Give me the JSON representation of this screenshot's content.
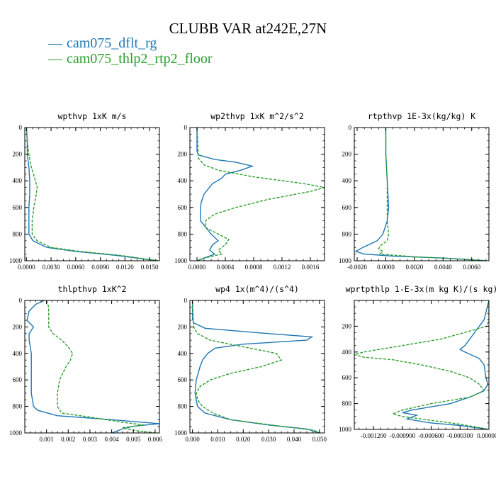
{
  "title": "CLUBB VAR at242E,27N",
  "legend": [
    {
      "label": "cam075_dflt_rg",
      "color": "#1f77b4"
    },
    {
      "label": "cam075_thlp2_rtp2_floor",
      "color": "#2ca02c"
    }
  ],
  "chart_data": [
    {
      "type": "line",
      "title": "wpthvp   1xK m/s",
      "xlim": [
        -0.0002,
        0.0162
      ],
      "ylim": [
        1000,
        0
      ],
      "xticks": [
        0.0,
        0.003,
        0.006,
        0.009,
        0.012,
        0.015
      ],
      "xtick_labels": [
        "0.0000",
        "0.0030",
        "0.0060",
        "0.0090",
        "0.0120",
        "0.0150"
      ],
      "yticks": [
        0,
        200,
        400,
        600,
        800,
        1000
      ],
      "ytick_labels": [
        "0",
        "200",
        "400",
        "600",
        "800",
        "1000"
      ],
      "series": [
        {
          "y": [
            0,
            100,
            200,
            300,
            400,
            500,
            600,
            700,
            800,
            850,
            900,
            930,
            960,
            1000
          ],
          "x": [
            0.0,
            0.0001,
            0.0001,
            0.0003,
            0.0004,
            0.0004,
            0.0003,
            0.0003,
            0.0003,
            0.0008,
            0.0025,
            0.006,
            0.011,
            0.016
          ]
        },
        {
          "y": [
            0,
            100,
            200,
            300,
            400,
            450,
            500,
            600,
            700,
            800,
            850,
            900,
            930,
            960,
            1000
          ],
          "x": [
            0.0,
            0.0001,
            0.0003,
            0.0006,
            0.0011,
            0.0013,
            0.0012,
            0.0009,
            0.0007,
            0.0007,
            0.0013,
            0.003,
            0.0065,
            0.0115,
            0.016
          ]
        }
      ]
    },
    {
      "type": "line",
      "title": "wp2thvp   1xK m^2/s^2",
      "xlim": [
        -0.0001,
        0.0018
      ],
      "ylim": [
        1000,
        0
      ],
      "xticks": [
        0.0,
        0.0004,
        0.0008,
        0.0012,
        0.0016
      ],
      "xtick_labels": [
        "0.0000",
        "0.0004",
        "0.0008",
        "0.0012",
        "0.0016"
      ],
      "yticks": [
        0,
        200,
        400,
        600,
        800,
        1000
      ],
      "ytick_labels": [
        "0",
        "200",
        "400",
        "600",
        "800",
        "1000"
      ],
      "series": [
        {
          "y": [
            0,
            180,
            205,
            240,
            260,
            290,
            320,
            350,
            380,
            420,
            500,
            560,
            600,
            700,
            800,
            850,
            880,
            920,
            950,
            980,
            1000
          ],
          "x": [
            0.0,
            0.0,
            2e-05,
            0.00025,
            0.00055,
            0.00078,
            0.00062,
            0.0004,
            0.00035,
            0.00022,
            0.0001,
            6e-05,
            5e-05,
            5e-05,
            0.0002,
            0.0003,
            0.00022,
            0.00018,
            0.00025,
            0.0001,
            0.0
          ]
        },
        {
          "y": [
            0,
            230,
            280,
            320,
            370,
            420,
            450,
            480,
            540,
            600,
            650,
            700,
            750,
            800,
            840,
            880,
            920,
            950,
            980,
            1000
          ],
          "x": [
            0.0,
            2e-05,
            0.0001,
            0.0003,
            0.0008,
            0.0015,
            0.0018,
            0.0016,
            0.001,
            0.00055,
            0.00025,
            0.00012,
            0.00012,
            0.0003,
            0.00045,
            0.0004,
            0.0003,
            0.00035,
            0.0001,
            0.0
          ]
        }
      ]
    },
    {
      "type": "line",
      "title": "rtpthvp   1E-3x(kg/kg) K",
      "xlim": [
        -0.0022,
        0.0072
      ],
      "ylim": [
        1000,
        0
      ],
      "xticks": [
        -0.002,
        0.0,
        0.002,
        0.004,
        0.006
      ],
      "xtick_labels": [
        "-0.0020",
        "0.0000",
        "0.0020",
        "0.0040",
        "0.0060"
      ],
      "yticks": [
        0,
        200,
        400,
        600,
        800,
        1000
      ],
      "ytick_labels": [
        "0",
        "200",
        "400",
        "600",
        "800",
        "1000"
      ],
      "series": [
        {
          "y": [
            0,
            200,
            400,
            600,
            700,
            800,
            850,
            900,
            930,
            950,
            965,
            980,
            1000
          ],
          "x": [
            0.0,
            0.0,
            0.0001,
            0.0002,
            0.0001,
            -0.0002,
            -0.0006,
            -0.0016,
            -0.0021,
            -0.0015,
            0.0005,
            0.004,
            0.007
          ]
        },
        {
          "y": [
            0,
            200,
            400,
            600,
            700,
            800,
            850,
            880,
            910,
            930,
            950,
            970,
            985,
            1000
          ],
          "x": [
            0.0,
            0.0,
            0.0001,
            0.0001,
            0.0001,
            0.0002,
            0.0001,
            -0.0003,
            -0.0005,
            -0.0002,
            -0.0004,
            0.002,
            0.005,
            0.007
          ]
        }
      ]
    },
    {
      "type": "line",
      "title": "thlpthvp   1xK^2",
      "xlim": [
        0.0,
        0.0062
      ],
      "ylim": [
        1000,
        0
      ],
      "xticks": [
        0.001,
        0.002,
        0.003,
        0.004,
        0.005,
        0.006
      ],
      "xtick_labels": [
        "0.001",
        "0.002",
        "0.003",
        "0.004",
        "0.005",
        "0.006"
      ],
      "yticks": [
        0,
        200,
        400,
        600,
        800,
        1000
      ],
      "ytick_labels": [
        "0",
        "200",
        "400",
        "600",
        "800",
        "1000"
      ],
      "series": [
        {
          "y": [
            0,
            30,
            80,
            150,
            200,
            250,
            300,
            400,
            500,
            600,
            700,
            800,
            830,
            870,
            900,
            930,
            950,
            970,
            1000
          ],
          "x": [
            0.0009,
            0.0005,
            0.0002,
            0.0001,
            0.0004,
            0.0002,
            0.0002,
            0.0003,
            0.0003,
            0.0003,
            0.0003,
            0.0004,
            0.0006,
            0.0015,
            0.004,
            0.0062,
            0.005,
            0.0045,
            0.004
          ]
        },
        {
          "y": [
            0,
            50,
            100,
            200,
            250,
            300,
            350,
            400,
            450,
            500,
            600,
            700,
            800,
            850,
            880,
            920,
            940,
            960,
            980,
            1000
          ],
          "x": [
            0.001,
            0.0011,
            0.0011,
            0.0011,
            0.0013,
            0.0017,
            0.002,
            0.0022,
            0.0021,
            0.0019,
            0.0016,
            0.0015,
            0.0015,
            0.0017,
            0.003,
            0.0045,
            0.0055,
            0.0045,
            0.005,
            0.006
          ]
        }
      ]
    },
    {
      "type": "line",
      "title": "wp4   1x(m^4)/(s^4)",
      "xlim": [
        -0.001,
        0.052
      ],
      "ylim": [
        1000,
        0
      ],
      "xticks": [
        0.0,
        0.01,
        0.02,
        0.03,
        0.04,
        0.05
      ],
      "xtick_labels": [
        "0.000",
        "0.010",
        "0.020",
        "0.030",
        "0.040",
        "0.050"
      ],
      "yticks": [
        0,
        200,
        400,
        600,
        800,
        1000
      ],
      "ytick_labels": [
        "0",
        "200",
        "400",
        "600",
        "800",
        "1000"
      ],
      "series": [
        {
          "y": [
            0,
            140,
            170,
            210,
            250,
            275,
            300,
            330,
            360,
            400,
            450,
            500,
            600,
            700,
            800,
            850,
            900,
            940,
            970,
            1000
          ],
          "x": [
            0.0,
            0.0,
            0.0005,
            0.005,
            0.03,
            0.047,
            0.045,
            0.02,
            0.009,
            0.006,
            0.004,
            0.003,
            0.0015,
            0.001,
            0.002,
            0.005,
            0.015,
            0.03,
            0.045,
            0.05
          ]
        },
        {
          "y": [
            0,
            200,
            250,
            300,
            350,
            400,
            450,
            500,
            550,
            600,
            650,
            700,
            750,
            800,
            850,
            900,
            950,
            980,
            1000
          ],
          "x": [
            0.0,
            0.0005,
            0.002,
            0.007,
            0.02,
            0.033,
            0.035,
            0.027,
            0.015,
            0.007,
            0.003,
            0.0015,
            0.002,
            0.004,
            0.008,
            0.015,
            0.035,
            0.048,
            0.05
          ]
        }
      ]
    },
    {
      "type": "line",
      "title": "wprtpthlp   1-E-3x(m kg K)/(s kg)",
      "xlim": [
        -0.0014,
        0.0
      ],
      "ylim": [
        1000,
        0
      ],
      "xticks": [
        -0.0012,
        -0.0009,
        -0.0006,
        -0.0003,
        0.0
      ],
      "xtick_labels": [
        "-0.001200",
        "-0.000900",
        "-0.000600",
        "-0.000300",
        "0.000000"
      ],
      "yticks": [
        200,
        400,
        600,
        800,
        1000
      ],
      "ytick_labels": [
        "200",
        "400",
        "600",
        "800",
        "1000"
      ],
      "series": [
        {
          "y": [
            0,
            150,
            200,
            250,
            300,
            350,
            380,
            400,
            450,
            500,
            600,
            650,
            700,
            750,
            800,
            850,
            870,
            890,
            920,
            950,
            970,
            1000
          ],
          "x": [
            0.0,
            -5e-05,
            -0.0001,
            -0.00015,
            -0.0002,
            -0.00025,
            -0.0003,
            -0.00025,
            -0.0001,
            -5e-05,
            -3e-05,
            -1e-05,
            -5e-05,
            -0.0002,
            -0.0004,
            -0.0008,
            -0.0009,
            -0.00075,
            -0.00085,
            -0.0006,
            -0.0003,
            0.0
          ]
        },
        {
          "y": [
            0,
            150,
            200,
            300,
            400,
            420,
            440,
            460,
            500,
            550,
            600,
            650,
            700,
            750,
            800,
            850,
            880,
            900,
            920,
            960,
            1000
          ],
          "x": [
            0.0,
            0.0,
            -2e-05,
            -0.0005,
            -0.0013,
            -0.0014,
            -0.0013,
            -0.001,
            -0.0007,
            -0.0004,
            -0.0002,
            -0.0001,
            -5e-05,
            -0.0002,
            -0.0006,
            -0.0009,
            -0.001,
            -0.0009,
            -0.0007,
            -0.0003,
            0.0
          ]
        }
      ]
    }
  ]
}
